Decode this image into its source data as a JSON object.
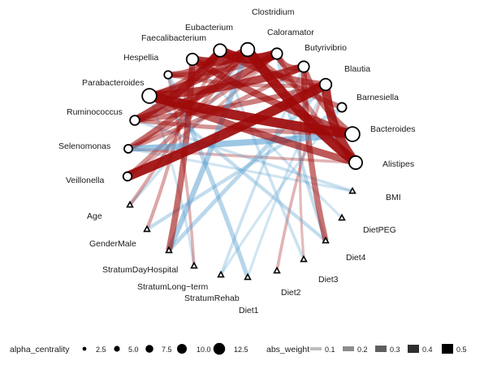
{
  "nodes": [
    {
      "id": "Clostridium",
      "label": "Clostridium",
      "shape": "circle",
      "alpha_centrality": 11.5
    },
    {
      "id": "Eubacterium",
      "label": "Eubacterium",
      "shape": "circle",
      "alpha_centrality": 10.5
    },
    {
      "id": "Caloramator",
      "label": "Caloramator",
      "shape": "circle",
      "alpha_centrality": 8.5
    },
    {
      "id": "Faecalibacterium",
      "label": "Faecalibacterium",
      "shape": "circle",
      "alpha_centrality": 9.5
    },
    {
      "id": "Butyrivibrio",
      "label": "Butyrivibrio",
      "shape": "circle",
      "alpha_centrality": 8.5
    },
    {
      "id": "Hespellia",
      "label": "Hespellia",
      "shape": "circle",
      "alpha_centrality": 5.0
    },
    {
      "id": "Blautia",
      "label": "Blautia",
      "shape": "circle",
      "alpha_centrality": 9.5
    },
    {
      "id": "Parabacteroides",
      "label": "Parabacteroides",
      "shape": "circle",
      "alpha_centrality": 12.5
    },
    {
      "id": "Barnesiella",
      "label": "Barnesiella",
      "shape": "circle",
      "alpha_centrality": 6.5
    },
    {
      "id": "Ruminococcus",
      "label": "Ruminococcus",
      "shape": "circle",
      "alpha_centrality": 7.0
    },
    {
      "id": "Bacteroides",
      "label": "Bacteroides",
      "shape": "circle",
      "alpha_centrality": 12.5
    },
    {
      "id": "Selenomonas",
      "label": "Selenomonas",
      "shape": "circle",
      "alpha_centrality": 5.5
    },
    {
      "id": "Alistipes",
      "label": "Alistipes",
      "shape": "circle",
      "alpha_centrality": 11.0
    },
    {
      "id": "Veillonella",
      "label": "Veillonella",
      "shape": "circle",
      "alpha_centrality": 6.0
    },
    {
      "id": "BMI",
      "label": "BMI",
      "shape": "triangle"
    },
    {
      "id": "Age",
      "label": "Age",
      "shape": "triangle"
    },
    {
      "id": "DietPEG",
      "label": "DietPEG",
      "shape": "triangle"
    },
    {
      "id": "GenderMale",
      "label": "GenderMale",
      "shape": "triangle"
    },
    {
      "id": "Diet4",
      "label": "Diet4",
      "shape": "triangle"
    },
    {
      "id": "StratumDayHospital",
      "label": "StratumDayHospital",
      "shape": "triangle"
    },
    {
      "id": "Diet3",
      "label": "Diet3",
      "shape": "triangle"
    },
    {
      "id": "StratumLong-term",
      "label": "StratumLong−term",
      "shape": "triangle"
    },
    {
      "id": "Diet2",
      "label": "Diet2",
      "shape": "triangle"
    },
    {
      "id": "StratumRehab",
      "label": "StratumRehab",
      "shape": "triangle"
    },
    {
      "id": "Diet1",
      "label": "Diet1",
      "shape": "triangle"
    }
  ],
  "edges": [
    {
      "from": "Parabacteroides",
      "to": "Bacteroides",
      "sign": "positive",
      "weight": 0.5
    },
    {
      "from": "Veillonella",
      "to": "Blautia",
      "sign": "positive",
      "weight": 0.5
    },
    {
      "from": "Clostridium",
      "to": "Alistipes",
      "sign": "positive",
      "weight": 0.5
    },
    {
      "from": "Eubacterium",
      "to": "Caloramator",
      "sign": "positive",
      "weight": 0.5
    },
    {
      "from": "Faecalibacterium",
      "to": "Clostridium",
      "sign": "positive",
      "weight": 0.45
    },
    {
      "from": "Blautia",
      "to": "Alistipes",
      "sign": "positive",
      "weight": 0.45
    },
    {
      "from": "Parabacteroides",
      "to": "Butyrivibrio",
      "sign": "positive",
      "weight": 0.4
    },
    {
      "from": "Ruminococcus",
      "to": "Eubacterium",
      "sign": "positive",
      "weight": 0.4
    },
    {
      "from": "Ruminococcus",
      "to": "Caloramator",
      "sign": "positive",
      "weight": 0.35
    },
    {
      "from": "Parabacteroides",
      "to": "Alistipes",
      "sign": "positive",
      "weight": 0.35
    },
    {
      "from": "Parabacteroides",
      "to": "Clostridium",
      "sign": "positive",
      "weight": 0.35
    },
    {
      "from": "Faecalibacterium",
      "to": "Bacteroides",
      "sign": "positive",
      "weight": 0.35
    },
    {
      "from": "Eubacterium",
      "to": "Blautia",
      "sign": "positive",
      "weight": 0.3
    },
    {
      "from": "Caloramator",
      "to": "Butyrivibrio",
      "sign": "positive",
      "weight": 0.3
    },
    {
      "from": "Selenomonas",
      "to": "Clostridium",
      "sign": "positive",
      "weight": 0.3
    },
    {
      "from": "Hespellia",
      "to": "Eubacterium",
      "sign": "positive",
      "weight": 0.3
    },
    {
      "from": "Faecalibacterium",
      "to": "StratumDayHospital",
      "sign": "positive",
      "weight": 0.3
    },
    {
      "from": "Butyrivibrio",
      "to": "Bacteroides",
      "sign": "positive",
      "weight": 0.28
    },
    {
      "from": "Butyrivibrio",
      "to": "Diet4",
      "sign": "positive",
      "weight": 0.28
    },
    {
      "from": "Clostridium",
      "to": "Barnesiella",
      "sign": "positive",
      "weight": 0.25
    },
    {
      "from": "Parabacteroides",
      "to": "Eubacterium",
      "sign": "positive",
      "weight": 0.25
    },
    {
      "from": "Ruminococcus",
      "to": "Blautia",
      "sign": "positive",
      "weight": 0.25
    },
    {
      "from": "Hespellia",
      "to": "Caloramator",
      "sign": "positive",
      "weight": 0.25
    },
    {
      "from": "Selenomonas",
      "to": "Butyrivibrio",
      "sign": "positive",
      "weight": 0.2
    },
    {
      "from": "Veillonella",
      "to": "Clostridium",
      "sign": "positive",
      "weight": 0.2
    },
    {
      "from": "Ruminococcus",
      "to": "Bacteroides",
      "sign": "positive",
      "weight": 0.2
    },
    {
      "from": "Caloramator",
      "to": "Alistipes",
      "sign": "positive",
      "weight": 0.2
    },
    {
      "from": "Hespellia",
      "to": "Blautia",
      "sign": "positive",
      "weight": 0.18
    },
    {
      "from": "Selenomonas",
      "to": "Caloramator",
      "sign": "positive",
      "weight": 0.18
    },
    {
      "from": "Age",
      "to": "Eubacterium",
      "sign": "positive",
      "weight": 0.15
    },
    {
      "from": "GenderMale",
      "to": "Faecalibacterium",
      "sign": "positive",
      "weight": 0.15
    },
    {
      "from": "Diet2",
      "to": "Blautia",
      "sign": "positive",
      "weight": 0.12
    },
    {
      "from": "Selenomonas",
      "to": "Alistipes",
      "sign": "positive",
      "weight": 0.12
    },
    {
      "from": "StratumLong-term",
      "to": "Hespellia",
      "sign": "positive",
      "weight": 0.12
    },
    {
      "from": "Veillonella",
      "to": "Caloramator",
      "sign": "positive",
      "weight": 0.12
    },
    {
      "from": "Diet3",
      "to": "Butyrivibrio",
      "sign": "positive",
      "weight": 0.1
    },
    {
      "from": "Selenomonas",
      "to": "Bacteroides",
      "sign": "negative",
      "weight": 0.3
    },
    {
      "from": "Clostridium",
      "to": "StratumDayHospital",
      "sign": "negative",
      "weight": 0.25
    },
    {
      "from": "Hespellia",
      "to": "Diet1",
      "sign": "negative",
      "weight": 0.2
    },
    {
      "from": "Blautia",
      "to": "StratumDayHospital",
      "sign": "negative",
      "weight": 0.18
    },
    {
      "from": "Barnesiella",
      "to": "GenderMale",
      "sign": "negative",
      "weight": 0.15
    },
    {
      "from": "Caloramator",
      "to": "Diet4",
      "sign": "negative",
      "weight": 0.15
    },
    {
      "from": "Parabacteroides",
      "to": "Diet4",
      "sign": "negative",
      "weight": 0.15
    },
    {
      "from": "Ruminococcus",
      "to": "BMI",
      "sign": "negative",
      "weight": 0.12
    },
    {
      "from": "Clostridium",
      "to": "Age",
      "sign": "negative",
      "weight": 0.12
    },
    {
      "from": "Eubacterium",
      "to": "Diet3",
      "sign": "negative",
      "weight": 0.12
    },
    {
      "from": "Butyrivibrio",
      "to": "StratumRehab",
      "sign": "negative",
      "weight": 0.12
    },
    {
      "from": "Parabacteroides",
      "to": "StratumLong-term",
      "sign": "negative",
      "weight": 0.1
    },
    {
      "from": "Faecalibacterium",
      "to": "DietPEG",
      "sign": "negative",
      "weight": 0.1
    },
    {
      "from": "Barnesiella",
      "to": "StratumRehab",
      "sign": "negative",
      "weight": 0.1
    },
    {
      "from": "Blautia",
      "to": "Diet1",
      "sign": "negative",
      "weight": 0.1
    },
    {
      "from": "Selenomonas",
      "to": "BMI",
      "sign": "negative",
      "weight": 0.1
    }
  ],
  "legend": {
    "alpha_title": "alpha_centrality",
    "alpha_items": [
      {
        "label": "2.5",
        "value": 2.5
      },
      {
        "label": "5.0",
        "value": 5.0
      },
      {
        "label": "7.5",
        "value": 7.5
      },
      {
        "label": "10.0",
        "value": 10.0
      },
      {
        "label": "12.5",
        "value": 12.5
      }
    ],
    "weight_title": "abs_weight",
    "weight_items": [
      {
        "label": "0.1",
        "value": 0.1
      },
      {
        "label": "0.2",
        "value": 0.2
      },
      {
        "label": "0.3",
        "value": 0.3
      },
      {
        "label": "0.4",
        "value": 0.4
      },
      {
        "label": "0.5",
        "value": 0.5
      }
    ]
  },
  "colors": {
    "positive_edge": "#9e0a0a",
    "negative_edge": "#5aa0d0",
    "node_stroke": "#000000",
    "node_fill": "#ffffff",
    "text": "#1a1a1a"
  }
}
